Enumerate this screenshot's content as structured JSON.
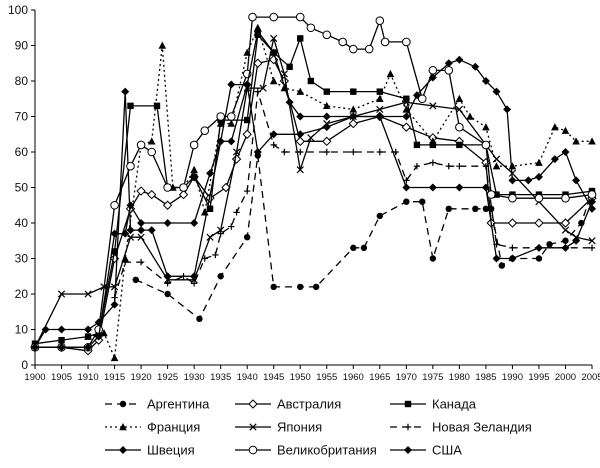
{
  "chart_data": {
    "type": "line",
    "title": "",
    "xlabel": "",
    "ylabel": "",
    "xlim": [
      1900,
      2005
    ],
    "ylim": [
      0,
      100
    ],
    "grid": false,
    "legend_position": "bottom",
    "x_ticks": [
      1900,
      1905,
      1910,
      1915,
      1920,
      1925,
      1930,
      1935,
      1940,
      1945,
      1950,
      1955,
      1960,
      1965,
      1970,
      1975,
      1980,
      1985,
      1990,
      1995,
      2000,
      2005
    ],
    "y_ticks": [
      0,
      10,
      20,
      30,
      40,
      50,
      60,
      70,
      80,
      90,
      100
    ],
    "series": [
      {
        "name": "Аргентина",
        "dash": "7,5",
        "marker": "circle",
        "points": [
          [
            1919,
            24
          ],
          [
            1925,
            20
          ],
          [
            1931,
            13
          ],
          [
            1935,
            25
          ],
          [
            1940,
            36
          ],
          [
            1942,
            59
          ],
          [
            1945,
            22
          ],
          [
            1950,
            22
          ],
          [
            1953,
            22
          ],
          [
            1960,
            33
          ],
          [
            1962,
            33
          ],
          [
            1965,
            42
          ],
          [
            1970,
            46
          ],
          [
            1973,
            46
          ],
          [
            1975,
            30
          ],
          [
            1978,
            44
          ],
          [
            1983,
            44
          ],
          [
            1985,
            44
          ],
          [
            1986,
            44
          ],
          [
            1988,
            28
          ],
          [
            1990,
            30
          ],
          [
            1995,
            30
          ],
          [
            1997,
            34
          ],
          [
            2000,
            35
          ],
          [
            2003,
            40
          ],
          [
            2005,
            49
          ]
        ]
      },
      {
        "name": "Австралия",
        "dash": "",
        "marker": "diamond-open",
        "points": [
          [
            1900,
            5
          ],
          [
            1905,
            5
          ],
          [
            1910,
            4
          ],
          [
            1912,
            7
          ],
          [
            1915,
            30
          ],
          [
            1918,
            44
          ],
          [
            1920,
            49
          ],
          [
            1922,
            48
          ],
          [
            1925,
            45
          ],
          [
            1928,
            48
          ],
          [
            1930,
            53
          ],
          [
            1933,
            47
          ],
          [
            1936,
            50
          ],
          [
            1938,
            58
          ],
          [
            1940,
            65
          ],
          [
            1942,
            85
          ],
          [
            1945,
            86
          ],
          [
            1947,
            80
          ],
          [
            1950,
            63
          ],
          [
            1955,
            63
          ],
          [
            1960,
            68
          ],
          [
            1965,
            70
          ],
          [
            1970,
            67
          ],
          [
            1975,
            64
          ],
          [
            1980,
            63
          ],
          [
            1985,
            57
          ],
          [
            1986,
            40
          ],
          [
            1990,
            40
          ],
          [
            1995,
            40
          ],
          [
            2000,
            40
          ],
          [
            2005,
            47
          ]
        ]
      },
      {
        "name": "Канада",
        "dash": "",
        "marker": "square",
        "points": [
          [
            1900,
            6
          ],
          [
            1905,
            7
          ],
          [
            1910,
            8
          ],
          [
            1912,
            9
          ],
          [
            1915,
            32
          ],
          [
            1918,
            73
          ],
          [
            1923,
            73
          ],
          [
            1925,
            50
          ],
          [
            1928,
            50
          ],
          [
            1930,
            53
          ],
          [
            1933,
            44
          ],
          [
            1935,
            69
          ],
          [
            1940,
            69
          ],
          [
            1942,
            93
          ],
          [
            1945,
            88
          ],
          [
            1948,
            84
          ],
          [
            1950,
            92
          ],
          [
            1952,
            80
          ],
          [
            1955,
            77
          ],
          [
            1960,
            77
          ],
          [
            1965,
            77
          ],
          [
            1970,
            75
          ],
          [
            1972,
            62
          ],
          [
            1975,
            62
          ],
          [
            1980,
            62
          ],
          [
            1985,
            62
          ],
          [
            1987,
            48
          ],
          [
            1990,
            48
          ],
          [
            1995,
            48
          ],
          [
            2000,
            48
          ],
          [
            2005,
            49
          ]
        ]
      },
      {
        "name": "Франция",
        "dash": "2,3",
        "marker": "triangle",
        "points": [
          [
            1910,
            8
          ],
          [
            1913,
            9
          ],
          [
            1915,
            2
          ],
          [
            1917,
            30
          ],
          [
            1920,
            62
          ],
          [
            1922,
            63
          ],
          [
            1924,
            90
          ],
          [
            1926,
            50
          ],
          [
            1928,
            50
          ],
          [
            1930,
            55
          ],
          [
            1932,
            43
          ],
          [
            1935,
            68
          ],
          [
            1937,
            68
          ],
          [
            1940,
            88
          ],
          [
            1942,
            95
          ],
          [
            1945,
            80
          ],
          [
            1947,
            78
          ],
          [
            1950,
            77
          ],
          [
            1955,
            73
          ],
          [
            1960,
            72
          ],
          [
            1965,
            75
          ],
          [
            1967,
            82
          ],
          [
            1970,
            72
          ],
          [
            1975,
            63
          ],
          [
            1980,
            75
          ],
          [
            1982,
            70
          ],
          [
            1985,
            67
          ],
          [
            1987,
            56
          ],
          [
            1990,
            56
          ],
          [
            1995,
            57
          ],
          [
            1998,
            67
          ],
          [
            2000,
            66
          ],
          [
            2002,
            63
          ],
          [
            2005,
            63
          ]
        ]
      },
      {
        "name": "Япония",
        "dash": "",
        "marker": "cross",
        "points": [
          [
            1900,
            5
          ],
          [
            1905,
            20
          ],
          [
            1910,
            20
          ],
          [
            1913,
            22
          ],
          [
            1915,
            22
          ],
          [
            1918,
            36
          ],
          [
            1920,
            36
          ],
          [
            1925,
            24
          ],
          [
            1930,
            24
          ],
          [
            1933,
            36
          ],
          [
            1935,
            38
          ],
          [
            1938,
            60
          ],
          [
            1940,
            78
          ],
          [
            1943,
            78
          ],
          [
            1945,
            92
          ],
          [
            1947,
            82
          ],
          [
            1950,
            55
          ],
          [
            1952,
            64
          ],
          [
            1955,
            68
          ],
          [
            1960,
            70
          ],
          [
            1965,
            72
          ],
          [
            1970,
            74
          ],
          [
            1975,
            73
          ],
          [
            1980,
            72
          ],
          [
            1985,
            62
          ],
          [
            1987,
            58
          ],
          [
            1990,
            54
          ],
          [
            1995,
            46
          ],
          [
            2000,
            38
          ],
          [
            2002,
            36
          ],
          [
            2005,
            35
          ]
        ]
      },
      {
        "name": "Новая Зеландия",
        "dash": "7,5",
        "marker": "plus",
        "points": [
          [
            1915,
            19
          ],
          [
            1917,
            29
          ],
          [
            1920,
            29
          ],
          [
            1925,
            23
          ],
          [
            1928,
            25
          ],
          [
            1930,
            23
          ],
          [
            1932,
            30
          ],
          [
            1934,
            31
          ],
          [
            1935,
            37
          ],
          [
            1937,
            39
          ],
          [
            1938,
            43
          ],
          [
            1940,
            49
          ],
          [
            1942,
            77
          ],
          [
            1945,
            62
          ],
          [
            1947,
            60
          ],
          [
            1950,
            60
          ],
          [
            1955,
            60
          ],
          [
            1960,
            60
          ],
          [
            1965,
            60
          ],
          [
            1968,
            60
          ],
          [
            1970,
            52
          ],
          [
            1972,
            56
          ],
          [
            1975,
            57
          ],
          [
            1978,
            56
          ],
          [
            1980,
            56
          ],
          [
            1985,
            56
          ],
          [
            1987,
            34
          ],
          [
            1990,
            33
          ],
          [
            1995,
            33
          ],
          [
            2000,
            33
          ],
          [
            2005,
            33
          ]
        ]
      },
      {
        "name": "Швеция",
        "dash": "",
        "marker": "diamond",
        "points": [
          [
            1900,
            5
          ],
          [
            1902,
            10
          ],
          [
            1905,
            10
          ],
          [
            1910,
            10
          ],
          [
            1912,
            12
          ],
          [
            1915,
            17
          ],
          [
            1917,
            77
          ],
          [
            1918,
            38
          ],
          [
            1920,
            38
          ],
          [
            1922,
            38
          ],
          [
            1925,
            25
          ],
          [
            1930,
            25
          ],
          [
            1935,
            63
          ],
          [
            1937,
            79
          ],
          [
            1940,
            79
          ],
          [
            1942,
            60
          ],
          [
            1945,
            65
          ],
          [
            1950,
            65
          ],
          [
            1955,
            67
          ],
          [
            1960,
            70
          ],
          [
            1965,
            70
          ],
          [
            1970,
            50
          ],
          [
            1975,
            50
          ],
          [
            1980,
            50
          ],
          [
            1985,
            50
          ],
          [
            1987,
            30
          ],
          [
            1990,
            30
          ],
          [
            1995,
            33
          ],
          [
            2000,
            33
          ],
          [
            2002,
            35
          ],
          [
            2005,
            46
          ]
        ]
      },
      {
        "name": "Великобритания",
        "dash": "",
        "marker": "circle-open",
        "points": [
          [
            1900,
            5
          ],
          [
            1905,
            5
          ],
          [
            1910,
            5
          ],
          [
            1912,
            10
          ],
          [
            1915,
            45
          ],
          [
            1918,
            56
          ],
          [
            1920,
            62
          ],
          [
            1922,
            60
          ],
          [
            1925,
            50
          ],
          [
            1928,
            50
          ],
          [
            1930,
            62
          ],
          [
            1932,
            66
          ],
          [
            1935,
            70
          ],
          [
            1937,
            70
          ],
          [
            1940,
            82
          ],
          [
            1941,
            98
          ],
          [
            1945,
            98
          ],
          [
            1950,
            98
          ],
          [
            1952,
            95
          ],
          [
            1955,
            93
          ],
          [
            1958,
            91
          ],
          [
            1960,
            89
          ],
          [
            1963,
            89
          ],
          [
            1965,
            97
          ],
          [
            1966,
            91
          ],
          [
            1970,
            91
          ],
          [
            1973,
            75
          ],
          [
            1975,
            83
          ],
          [
            1978,
            83
          ],
          [
            1980,
            67
          ],
          [
            1985,
            62
          ],
          [
            1986,
            48
          ],
          [
            1990,
            47
          ],
          [
            1995,
            47
          ],
          [
            2000,
            47
          ],
          [
            2005,
            48
          ]
        ]
      },
      {
        "name": "США",
        "dash": "",
        "marker": "diamond",
        "points": [
          [
            1900,
            5
          ],
          [
            1905,
            5
          ],
          [
            1910,
            5
          ],
          [
            1912,
            8
          ],
          [
            1915,
            37
          ],
          [
            1917,
            37
          ],
          [
            1918,
            45
          ],
          [
            1920,
            40
          ],
          [
            1925,
            40
          ],
          [
            1930,
            40
          ],
          [
            1933,
            54
          ],
          [
            1935,
            63
          ],
          [
            1937,
            63
          ],
          [
            1940,
            79
          ],
          [
            1942,
            94
          ],
          [
            1945,
            88
          ],
          [
            1948,
            74
          ],
          [
            1950,
            70
          ],
          [
            1955,
            70
          ],
          [
            1960,
            70
          ],
          [
            1965,
            70
          ],
          [
            1970,
            70
          ],
          [
            1972,
            76
          ],
          [
            1975,
            81
          ],
          [
            1978,
            85
          ],
          [
            1980,
            86
          ],
          [
            1983,
            84
          ],
          [
            1985,
            80
          ],
          [
            1987,
            77
          ],
          [
            1989,
            72
          ],
          [
            1990,
            52
          ],
          [
            1993,
            52
          ],
          [
            1995,
            53
          ],
          [
            1998,
            58
          ],
          [
            2000,
            60
          ],
          [
            2002,
            52
          ],
          [
            2005,
            44
          ]
        ]
      }
    ]
  }
}
